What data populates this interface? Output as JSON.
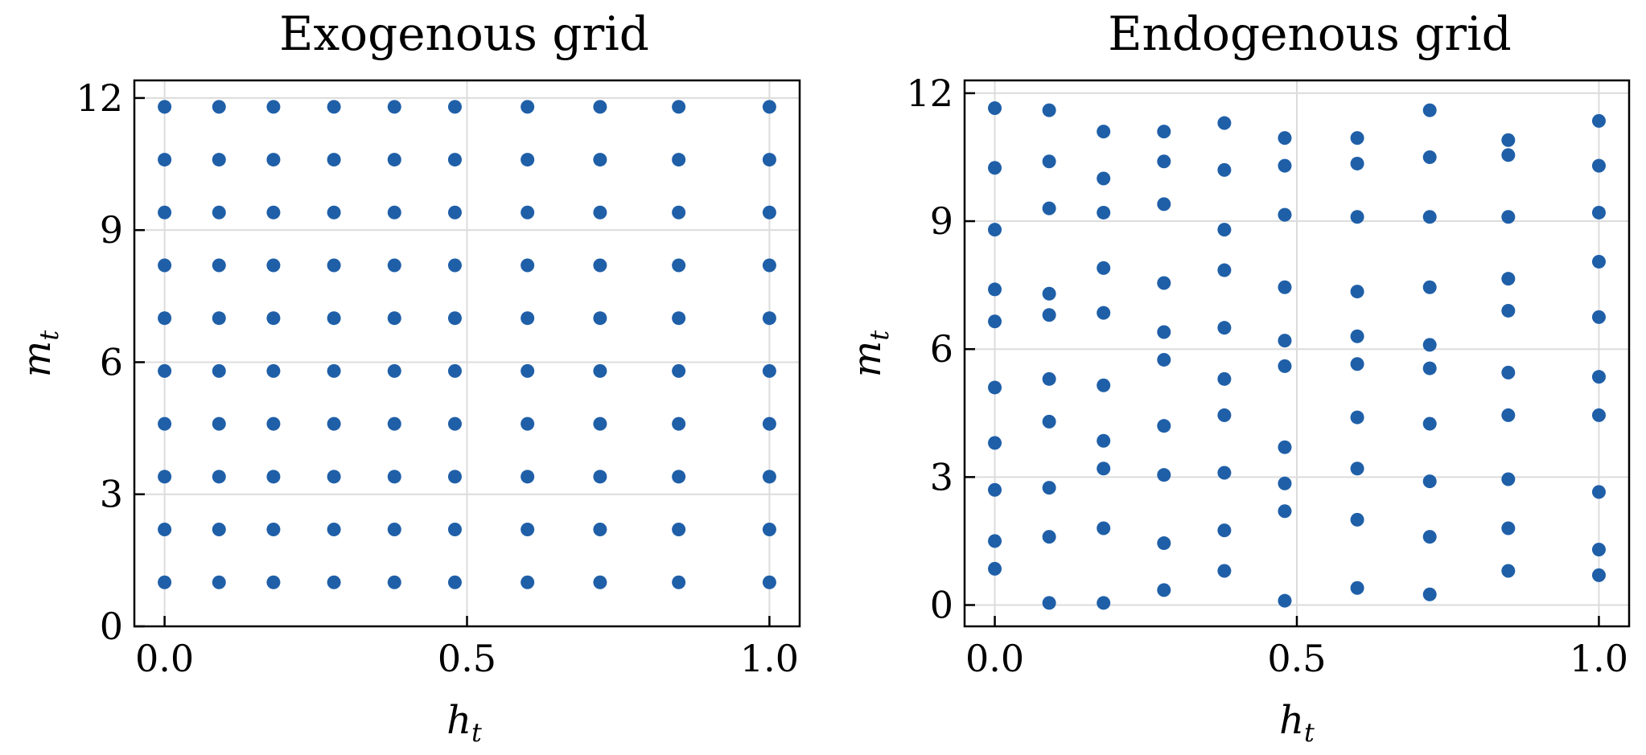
{
  "colors": {
    "marker": "#1f5fa8",
    "grid": "#dcdcdc",
    "axis": "#000000"
  },
  "chart_data": [
    {
      "type": "scatter",
      "title": "Exogenous grid",
      "xlabel": {
        "base": "h",
        "sub": "t"
      },
      "ylabel": {
        "base": "m",
        "sub": "t"
      },
      "xlim": [
        -0.05,
        1.05
      ],
      "ylim": [
        0,
        12.4
      ],
      "xticks": [
        0,
        0.5,
        1
      ],
      "xtick_labels": [
        "0.0",
        "0.5",
        "1.0"
      ],
      "yticks": [
        0,
        3,
        6,
        9,
        12
      ],
      "ytick_labels": [
        "0",
        "3",
        "6",
        "9",
        "12"
      ],
      "grid": true,
      "x_levels": [
        0,
        0.09,
        0.18,
        0.28,
        0.38,
        0.48,
        0.6,
        0.72,
        0.85,
        1
      ],
      "y_levels": [
        1,
        2.2,
        3.4,
        4.6,
        5.8,
        7,
        8.2,
        9.4,
        10.6,
        11.8
      ],
      "points": "full grid of x_levels × y_levels"
    },
    {
      "type": "scatter",
      "title": "Endogenous grid",
      "xlabel": {
        "base": "h",
        "sub": "t"
      },
      "ylabel": {
        "base": "m",
        "sub": "t"
      },
      "xlim": [
        -0.05,
        1.05
      ],
      "ylim": [
        -0.5,
        12.3
      ],
      "xticks": [
        0,
        0.5,
        1
      ],
      "xtick_labels": [
        "0.0",
        "0.5",
        "1.0"
      ],
      "yticks": [
        0,
        3,
        6,
        9,
        12
      ],
      "ytick_labels": [
        "0",
        "3",
        "6",
        "9",
        "12"
      ],
      "grid": true,
      "series": [
        {
          "x": 0,
          "y": [
            0.85,
            1.5,
            2.7,
            3.8,
            5.1,
            6.65,
            7.4,
            8.8,
            10.25,
            11.65
          ]
        },
        {
          "x": 0.09,
          "y": [
            0.05,
            1.6,
            2.75,
            4.3,
            5.3,
            6.8,
            7.3,
            9.3,
            10.4,
            11.6
          ]
        },
        {
          "x": 0.18,
          "y": [
            0.05,
            1.8,
            3.2,
            3.85,
            5.15,
            6.85,
            7.9,
            9.2,
            10.0,
            11.1
          ]
        },
        {
          "x": 0.28,
          "y": [
            0.35,
            1.45,
            3.05,
            4.2,
            5.75,
            6.4,
            7.55,
            9.4,
            10.4,
            11.1
          ]
        },
        {
          "x": 0.38,
          "y": [
            0.8,
            1.75,
            3.1,
            4.45,
            5.3,
            6.5,
            7.85,
            8.8,
            10.2,
            11.3
          ]
        },
        {
          "x": 0.48,
          "y": [
            0.1,
            2.2,
            2.85,
            3.7,
            5.6,
            6.2,
            7.45,
            9.15,
            10.3,
            10.95
          ]
        },
        {
          "x": 0.6,
          "y": [
            0.4,
            2.0,
            3.2,
            4.4,
            5.65,
            6.3,
            7.35,
            9.1,
            10.35,
            10.95
          ]
        },
        {
          "x": 0.72,
          "y": [
            0.25,
            1.6,
            2.9,
            4.25,
            5.55,
            6.1,
            7.45,
            9.1,
            10.5,
            11.6
          ]
        },
        {
          "x": 0.85,
          "y": [
            0.8,
            1.8,
            2.95,
            4.45,
            5.45,
            6.9,
            7.65,
            9.1,
            10.55,
            10.9
          ]
        },
        {
          "x": 1,
          "y": [
            0.7,
            1.3,
            2.65,
            4.45,
            5.35,
            6.75,
            8.05,
            9.2,
            10.3,
            11.35
          ]
        }
      ]
    }
  ]
}
